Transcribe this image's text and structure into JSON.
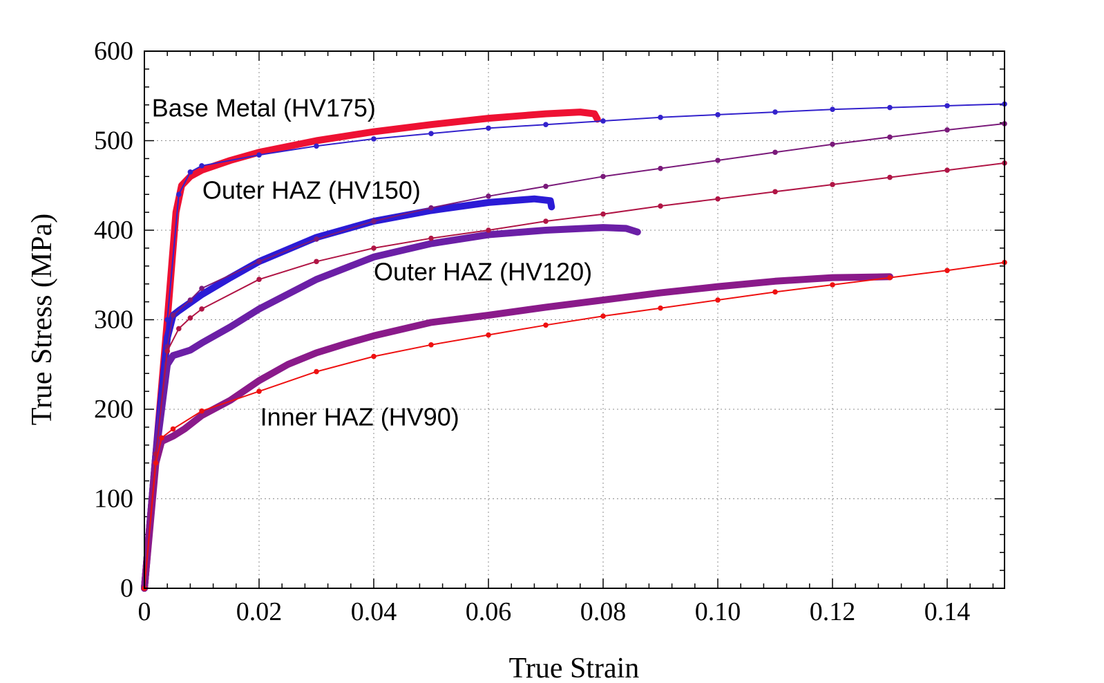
{
  "chart_data": {
    "type": "line",
    "title": "",
    "xlabel": "True Strain",
    "ylabel": "True Stress (MPa)",
    "xlim": [
      0,
      0.15
    ],
    "ylim": [
      0,
      600
    ],
    "grid": true,
    "x_ticks": [
      "0",
      "0.02",
      "0.04",
      "0.06",
      "0.08",
      "0.10",
      "0.12",
      "0.14"
    ],
    "x_tick_values": [
      0,
      0.02,
      0.04,
      0.06,
      0.08,
      0.1,
      0.12,
      0.14
    ],
    "y_ticks": [
      "0",
      "100",
      "200",
      "300",
      "400",
      "500",
      "600"
    ],
    "y_tick_values": [
      0,
      100,
      200,
      300,
      400,
      500,
      600
    ],
    "annotations": [
      {
        "text": "Base Metal (HV175)",
        "x": 0.0013,
        "y": 527
      },
      {
        "text": "Outer HAZ (HV150)",
        "x": 0.0101,
        "y": 435
      },
      {
        "text": "Outer HAZ (HV120)",
        "x": 0.04,
        "y": 344
      },
      {
        "text": "Inner HAZ (HV90)",
        "x": 0.0202,
        "y": 182
      }
    ],
    "series": [
      {
        "role": "experimental",
        "color": "#ee1133",
        "x": [
          0,
          0.002,
          0.004,
          0.0055,
          0.0065,
          0.008,
          0.01,
          0.015,
          0.02,
          0.03,
          0.04,
          0.05,
          0.06,
          0.07,
          0.076,
          0.0785,
          0.079
        ],
        "y": [
          0,
          150,
          300,
          420,
          450,
          460,
          467,
          478,
          487,
          500,
          510,
          518,
          525,
          530,
          532,
          530,
          524
        ]
      },
      {
        "role": "experimental",
        "color": "#2b1bd6",
        "x": [
          0,
          0.002,
          0.004,
          0.005,
          0.006,
          0.01,
          0.015,
          0.02,
          0.03,
          0.04,
          0.05,
          0.06,
          0.068,
          0.0708,
          0.071
        ],
        "y": [
          0,
          150,
          280,
          305,
          310,
          328,
          347,
          365,
          392,
          410,
          422,
          431,
          435,
          433,
          426
        ]
      },
      {
        "role": "experimental",
        "color": "#6b1fa6",
        "x": [
          0,
          0.002,
          0.004,
          0.005,
          0.008,
          0.01,
          0.015,
          0.02,
          0.03,
          0.04,
          0.05,
          0.06,
          0.07,
          0.08,
          0.084,
          0.086
        ],
        "y": [
          0,
          150,
          250,
          260,
          266,
          274,
          292,
          312,
          345,
          370,
          385,
          395,
          400,
          403,
          402,
          398
        ]
      },
      {
        "role": "experimental",
        "color": "#8a1a8a",
        "x": [
          0,
          0.002,
          0.003,
          0.005,
          0.007,
          0.01,
          0.015,
          0.02,
          0.025,
          0.03,
          0.035,
          0.04,
          0.05,
          0.06,
          0.07,
          0.08,
          0.09,
          0.1,
          0.11,
          0.12,
          0.13
        ],
        "y": [
          0,
          140,
          164,
          170,
          178,
          193,
          210,
          232,
          250,
          263,
          273,
          282,
          297,
          305,
          314,
          322,
          330,
          337,
          343,
          347,
          348
        ]
      },
      {
        "role": "model",
        "color": "#3322cc",
        "x": [
          0,
          0.002,
          0.004,
          0.006,
          0.008,
          0.01,
          0.02,
          0.03,
          0.04,
          0.05,
          0.06,
          0.07,
          0.08,
          0.09,
          0.1,
          0.11,
          0.12,
          0.13,
          0.14,
          0.15
        ],
        "y": [
          0,
          150,
          300,
          440,
          465,
          472,
          484,
          494,
          502,
          508,
          514,
          518,
          522,
          526,
          529,
          532,
          535,
          537,
          539,
          541
        ]
      },
      {
        "role": "model",
        "color": "#7a1a7a",
        "x": [
          0,
          0.002,
          0.004,
          0.005,
          0.008,
          0.01,
          0.02,
          0.03,
          0.04,
          0.05,
          0.06,
          0.07,
          0.08,
          0.09,
          0.1,
          0.11,
          0.12,
          0.13,
          0.14,
          0.15
        ],
        "y": [
          0,
          150,
          270,
          305,
          322,
          335,
          365,
          390,
          410,
          425,
          438,
          449,
          460,
          469,
          478,
          487,
          496,
          504,
          512,
          519
        ]
      },
      {
        "role": "model",
        "color": "#b01545",
        "x": [
          0,
          0.002,
          0.004,
          0.006,
          0.008,
          0.01,
          0.02,
          0.03,
          0.04,
          0.05,
          0.06,
          0.07,
          0.08,
          0.09,
          0.1,
          0.11,
          0.12,
          0.13,
          0.14,
          0.15
        ],
        "y": [
          0,
          150,
          265,
          290,
          302,
          312,
          345,
          365,
          380,
          391,
          400,
          410,
          418,
          427,
          435,
          443,
          451,
          459,
          467,
          475
        ]
      },
      {
        "role": "model",
        "color": "#ee1111",
        "x": [
          0,
          0.002,
          0.003,
          0.005,
          0.01,
          0.02,
          0.03,
          0.04,
          0.05,
          0.06,
          0.07,
          0.08,
          0.09,
          0.1,
          0.11,
          0.12,
          0.13,
          0.14,
          0.15
        ],
        "y": [
          0,
          140,
          168,
          178,
          198,
          220,
          242,
          259,
          272,
          283,
          294,
          304,
          313,
          322,
          331,
          339,
          347,
          355,
          364
        ]
      }
    ]
  }
}
